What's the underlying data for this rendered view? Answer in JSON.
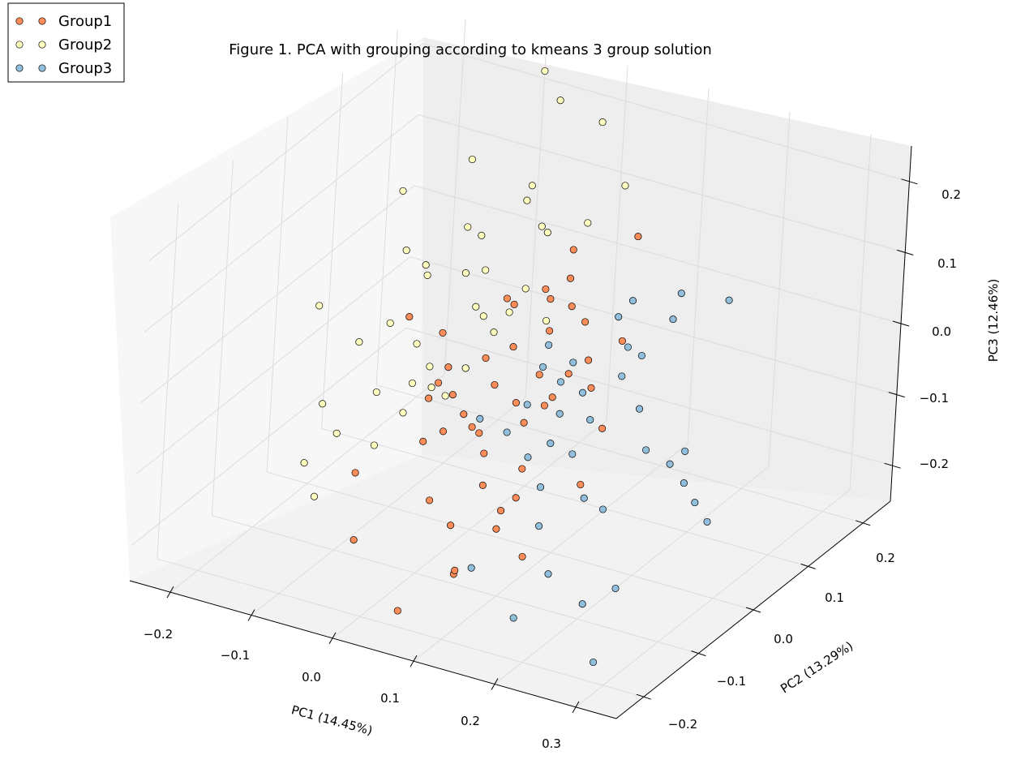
{
  "chart_data": {
    "type": "scatter",
    "dimensions": 3,
    "title": "Figure 1. PCA with grouping according to kmeans 3 group solution",
    "xlabel": "PC1 (14.45%)",
    "ylabel": "PC2 (13.29%)",
    "zlabel": "PC3 (12.46%)",
    "x_ticks": [
      "−0.2",
      "−0.1",
      "0.0",
      "0.1",
      "0.2",
      "0.3"
    ],
    "y_ticks": [
      "−0.2",
      "−0.1",
      "0.0",
      "0.1",
      "0.2"
    ],
    "z_ticks": [
      "−0.2",
      "−0.1",
      "0.0",
      "0.1",
      "0.2"
    ],
    "xlim": [
      -0.25,
      0.35
    ],
    "ylim": [
      -0.25,
      0.25
    ],
    "zlim": [
      -0.25,
      0.25
    ],
    "legend_position": "top-left",
    "grid": true,
    "series": [
      {
        "name": "Group1",
        "color": "#fc8d59",
        "points": [
          [
            0.12,
            0.1,
            0.14
          ],
          [
            0.03,
            0.12,
            0.08
          ],
          [
            0.14,
            0.05,
            0.03
          ],
          [
            0.05,
            0.05,
            0.06
          ],
          [
            0.07,
            0.02,
            0.04
          ],
          [
            0.1,
            0.04,
            0.05
          ],
          [
            -0.02,
            0.15,
            -0.01
          ],
          [
            0.0,
            0.06,
            0.03
          ],
          [
            0.15,
            -0.02,
            0.01
          ],
          [
            0.08,
            -0.01,
            0.0
          ],
          [
            0.04,
            0.0,
            0.02
          ],
          [
            0.11,
            -0.03,
            -0.01
          ],
          [
            -0.12,
            0.05,
            -0.02
          ],
          [
            -0.11,
            0.1,
            -0.07
          ],
          [
            0.02,
            0.0,
            -0.04
          ],
          [
            0.06,
            -0.02,
            -0.04
          ],
          [
            0.09,
            -0.05,
            -0.04
          ],
          [
            0.01,
            -0.04,
            -0.06
          ],
          [
            -0.03,
            0.0,
            -0.07
          ],
          [
            0.03,
            -0.04,
            -0.08
          ],
          [
            0.05,
            -0.06,
            -0.09
          ],
          [
            0.13,
            -0.12,
            -0.09
          ],
          [
            -0.05,
            0.02,
            -0.05
          ],
          [
            -0.02,
            -0.03,
            -0.1
          ],
          [
            0.07,
            -0.09,
            -0.11
          ],
          [
            0.1,
            -0.1,
            -0.13
          ],
          [
            -0.08,
            0.05,
            -0.1
          ],
          [
            -0.05,
            -0.02,
            -0.13
          ],
          [
            0.0,
            -0.08,
            -0.16
          ],
          [
            0.08,
            -0.15,
            -0.19
          ],
          [
            0.18,
            -0.18,
            -0.12
          ],
          [
            0.14,
            -0.17,
            -0.1
          ],
          [
            0.22,
            -0.14,
            -0.03
          ],
          [
            0.17,
            -0.06,
            0.08
          ],
          [
            0.04,
            -0.1,
            -0.17
          ],
          [
            -0.13,
            -0.02,
            -0.2
          ],
          [
            0.02,
            -0.16,
            -0.26
          ],
          [
            0.06,
            -0.12,
            -0.22
          ],
          [
            -0.07,
            -0.11,
            -0.22
          ],
          [
            0.11,
            -0.08,
            -0.08
          ],
          [
            0.01,
            0.03,
            0.06
          ],
          [
            0.06,
            0.07,
            0.08
          ],
          [
            -0.01,
            -0.01,
            -0.02
          ],
          [
            0.09,
            0.03,
            -0.02
          ],
          [
            0.12,
            -0.06,
            0.0
          ],
          [
            0.04,
            -0.07,
            -0.05
          ],
          [
            -0.04,
            -0.03,
            -0.06
          ],
          [
            0.16,
            -0.01,
            -0.05
          ],
          [
            0.07,
            0.06,
            0.05
          ],
          [
            0.02,
            -0.02,
            0.01
          ]
        ]
      },
      {
        "name": "Group2",
        "color": "#ffffbf",
        "points": [
          [
            -0.1,
            0.25,
            0.21
          ],
          [
            -0.06,
            0.22,
            0.2
          ],
          [
            -0.02,
            0.24,
            0.17
          ],
          [
            0.05,
            0.18,
            0.14
          ],
          [
            -0.05,
            0.16,
            0.12
          ],
          [
            -0.15,
            0.2,
            0.1
          ],
          [
            -0.2,
            0.15,
            0.07
          ],
          [
            -0.01,
            0.12,
            0.1
          ],
          [
            0.02,
            0.16,
            0.09
          ],
          [
            -0.1,
            0.12,
            0.07
          ],
          [
            -0.05,
            0.08,
            0.05
          ],
          [
            -0.16,
            0.1,
            0.03
          ],
          [
            -0.12,
            0.08,
            0.02
          ],
          [
            -0.08,
            0.09,
            0.03
          ],
          [
            0.0,
            0.08,
            0.04
          ],
          [
            -0.04,
            0.05,
            0.02
          ],
          [
            -0.13,
            0.03,
            -0.02
          ],
          [
            -0.09,
            0.02,
            -0.03
          ],
          [
            -0.23,
            0.05,
            -0.04
          ],
          [
            -0.16,
            0.02,
            -0.05
          ],
          [
            -0.06,
            0.0,
            -0.04
          ],
          [
            -0.03,
            0.05,
            0.01
          ],
          [
            -0.11,
            -0.02,
            -0.08
          ],
          [
            -0.02,
            -0.03,
            -0.05
          ],
          [
            -0.07,
            -0.03,
            -0.09
          ],
          [
            -0.13,
            -0.06,
            -0.12
          ],
          [
            -0.09,
            -0.05,
            -0.13
          ],
          [
            -0.01,
            -0.01,
            -0.02
          ],
          [
            -0.08,
            0.0,
            -0.07
          ],
          [
            -0.2,
            0.02,
            -0.15
          ],
          [
            -0.18,
            -0.04,
            -0.19
          ],
          [
            -0.14,
            -0.08,
            -0.2
          ],
          [
            0.01,
            0.1,
            0.11
          ],
          [
            -0.03,
            0.12,
            0.13
          ],
          [
            0.04,
            0.06,
            0.02
          ],
          [
            -0.07,
            0.1,
            0.08
          ],
          [
            -0.01,
            0.04,
            0.0
          ],
          [
            0.02,
            0.02,
            0.05
          ],
          [
            -0.11,
            0.06,
            0.05
          ],
          [
            -0.05,
            -0.01,
            -0.06
          ]
        ]
      },
      {
        "name": "Group3",
        "color": "#91bfdb",
        "points": [
          [
            0.33,
            -0.05,
            0.21
          ],
          [
            0.24,
            0.0,
            0.16
          ],
          [
            0.15,
            0.05,
            0.09
          ],
          [
            0.14,
            0.04,
            0.07
          ],
          [
            0.18,
            -0.01,
            0.03
          ],
          [
            0.21,
            -0.02,
            0.0
          ],
          [
            0.24,
            -0.05,
            -0.03
          ],
          [
            0.3,
            -0.07,
            0.0
          ],
          [
            0.32,
            -0.1,
            -0.02
          ],
          [
            0.36,
            -0.14,
            -0.01
          ],
          [
            0.37,
            -0.13,
            -0.04
          ],
          [
            0.27,
            -0.05,
            -0.04
          ],
          [
            0.2,
            -0.1,
            -0.08
          ],
          [
            0.23,
            -0.11,
            -0.08
          ],
          [
            0.17,
            -0.08,
            -0.04
          ],
          [
            0.14,
            -0.02,
            0.0
          ],
          [
            0.1,
            0.0,
            -0.01
          ],
          [
            0.12,
            -0.03,
            -0.03
          ],
          [
            0.08,
            -0.03,
            -0.03
          ],
          [
            0.07,
            -0.05,
            -0.06
          ],
          [
            0.11,
            -0.07,
            -0.07
          ],
          [
            0.14,
            -0.09,
            -0.09
          ],
          [
            0.16,
            -0.12,
            -0.12
          ],
          [
            0.2,
            -0.16,
            -0.15
          ],
          [
            0.25,
            -0.17,
            -0.17
          ],
          [
            0.27,
            -0.14,
            -0.16
          ],
          [
            0.28,
            -0.19,
            -0.23
          ],
          [
            0.18,
            -0.19,
            -0.2
          ],
          [
            0.1,
            -0.15,
            -0.18
          ],
          [
            0.03,
            -0.04,
            -0.06
          ],
          [
            0.07,
            0.02,
            0.02
          ],
          [
            0.16,
            0.03,
            0.04
          ],
          [
            0.19,
            0.01,
            0.05
          ],
          [
            0.2,
            0.05,
            0.08
          ],
          [
            0.12,
            -0.01,
            0.03
          ],
          [
            0.09,
            -0.02,
            0.02
          ],
          [
            0.17,
            -0.05,
            -0.01
          ],
          [
            0.13,
            -0.06,
            -0.05
          ]
        ]
      }
    ]
  }
}
